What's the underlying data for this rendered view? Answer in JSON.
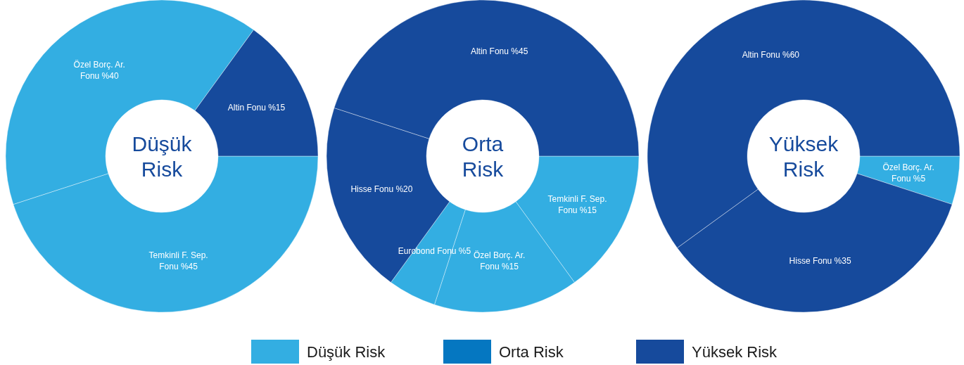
{
  "chart_data": [
    {
      "type": "donut",
      "title": "Düşük Risk",
      "categories": [
        "Temkinli F. Sep. Fonu",
        "Özel Borç. Ar. Fonu",
        "Altin Fonu"
      ],
      "values": [
        45,
        40,
        15
      ],
      "value_labels": [
        "%45",
        "%40",
        "%15"
      ],
      "colors": [
        "#33aee2",
        "#33aee2",
        "#164a9c"
      ]
    },
    {
      "type": "donut",
      "title": "Orta Risk",
      "categories": [
        "Temkinli F. Sep. Fonu",
        "Özel Borç. Ar. Fonu",
        "Eurobond Fonu",
        "Hisse Fonu",
        "Altin Fonu"
      ],
      "values": [
        15,
        15,
        5,
        20,
        45
      ],
      "value_labels": [
        "%15",
        "%15",
        "%5",
        "%20",
        "%45"
      ],
      "colors": [
        "#33aee2",
        "#33aee2",
        "#33aee2",
        "#164a9c",
        "#164a9c"
      ]
    },
    {
      "type": "donut",
      "title": "Yüksek Risk",
      "categories": [
        "Özel Borç. Ar. Fonu",
        "Hisse Fonu",
        "Altin Fonu"
      ],
      "values": [
        5,
        35,
        60
      ],
      "value_labels": [
        "%5",
        "%35",
        "%60"
      ],
      "colors": [
        "#33aee2",
        "#164a9c",
        "#164a9c"
      ]
    },
    {
      "type": "other",
      "legend": "bottom",
      "series": [
        {
          "name": "Düşük Risk",
          "color": "#33aee2"
        },
        {
          "name": "Orta Risk",
          "color": "#0577c1"
        },
        {
          "name": "Yüksek Risk",
          "color": "#164a9c"
        }
      ]
    }
  ]
}
